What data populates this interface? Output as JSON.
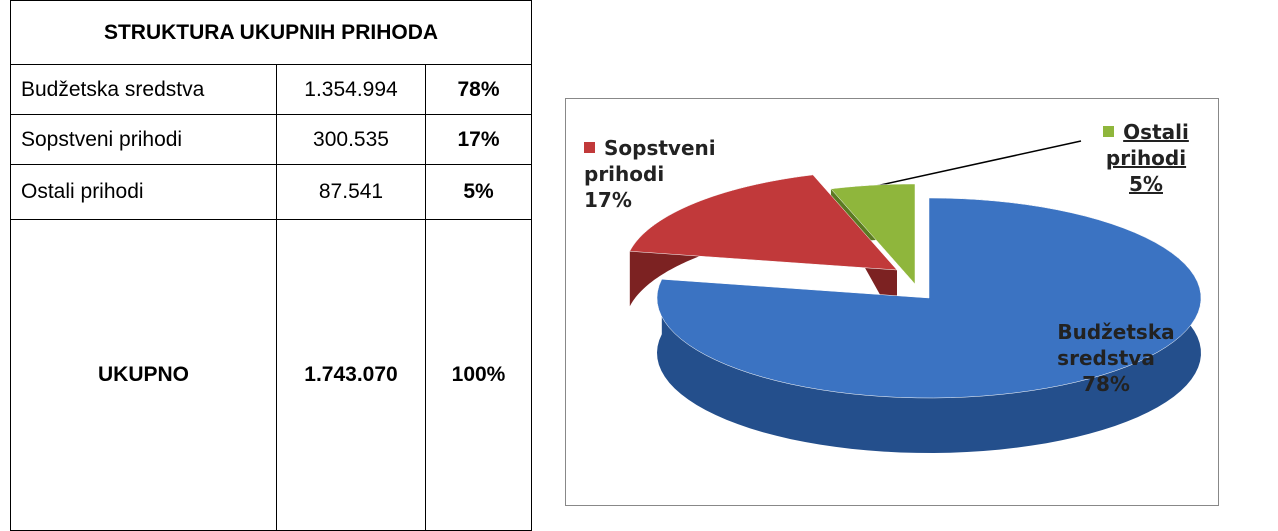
{
  "table": {
    "title": "STRUKTURA UKUPNIH PRIHODA",
    "rows": [
      [
        "Budžetska sredstva",
        "1.354.994",
        "78%"
      ],
      [
        "Sopstveni prihodi",
        "300.535",
        "17%"
      ],
      [
        "Ostali prihodi",
        "87.541",
        "5%"
      ]
    ],
    "total": [
      "UKUPNO",
      "1.743.070",
      "100%"
    ]
  },
  "chart_data": {
    "type": "pie",
    "categories": [
      "Budžetska sredstva",
      "Sopstveni prihodi",
      "Ostali prihodi"
    ],
    "values": [
      78,
      17,
      5
    ],
    "value_labels": [
      "78%",
      "17%",
      "5%"
    ],
    "colors": [
      "#3b73c2",
      "#c1393a",
      "#8fb63c"
    ]
  }
}
